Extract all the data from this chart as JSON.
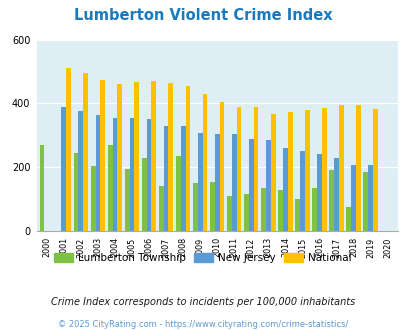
{
  "title": "Lumberton Violent Crime Index",
  "title_color": "#1a7abf",
  "years": [
    2000,
    2001,
    2002,
    2003,
    2004,
    2005,
    2006,
    2007,
    2008,
    2009,
    2010,
    2011,
    2012,
    2013,
    2014,
    2015,
    2016,
    2017,
    2018,
    2019,
    2020
  ],
  "lumberton": [
    270,
    0,
    245,
    205,
    270,
    195,
    230,
    140,
    235,
    150,
    155,
    110,
    115,
    135,
    130,
    100,
    135,
    190,
    75,
    185,
    0
  ],
  "new_jersey": [
    0,
    390,
    375,
    365,
    355,
    355,
    350,
    328,
    328,
    308,
    305,
    305,
    288,
    285,
    260,
    250,
    242,
    228,
    208,
    207,
    0
  ],
  "national": [
    0,
    510,
    494,
    472,
    460,
    468,
    470,
    463,
    453,
    428,
    405,
    390,
    390,
    367,
    373,
    380,
    386,
    396,
    395,
    382,
    0
  ],
  "lumberton_color": "#7dc242",
  "nj_color": "#5b9bd5",
  "national_color": "#ffc000",
  "bg_color": "#deeef5",
  "ylim": [
    0,
    600
  ],
  "yticks": [
    0,
    200,
    400,
    600
  ],
  "legend_labels": [
    "Lumberton Township",
    "New Jersey",
    "National"
  ],
  "footnote1": "Crime Index corresponds to incidents per 100,000 inhabitants",
  "footnote2": "© 2025 CityRating.com - https://www.cityrating.com/crime-statistics/",
  "footnote1_color": "#1a1a1a",
  "footnote2_color": "#5b9bd5",
  "bar_width": 0.28
}
